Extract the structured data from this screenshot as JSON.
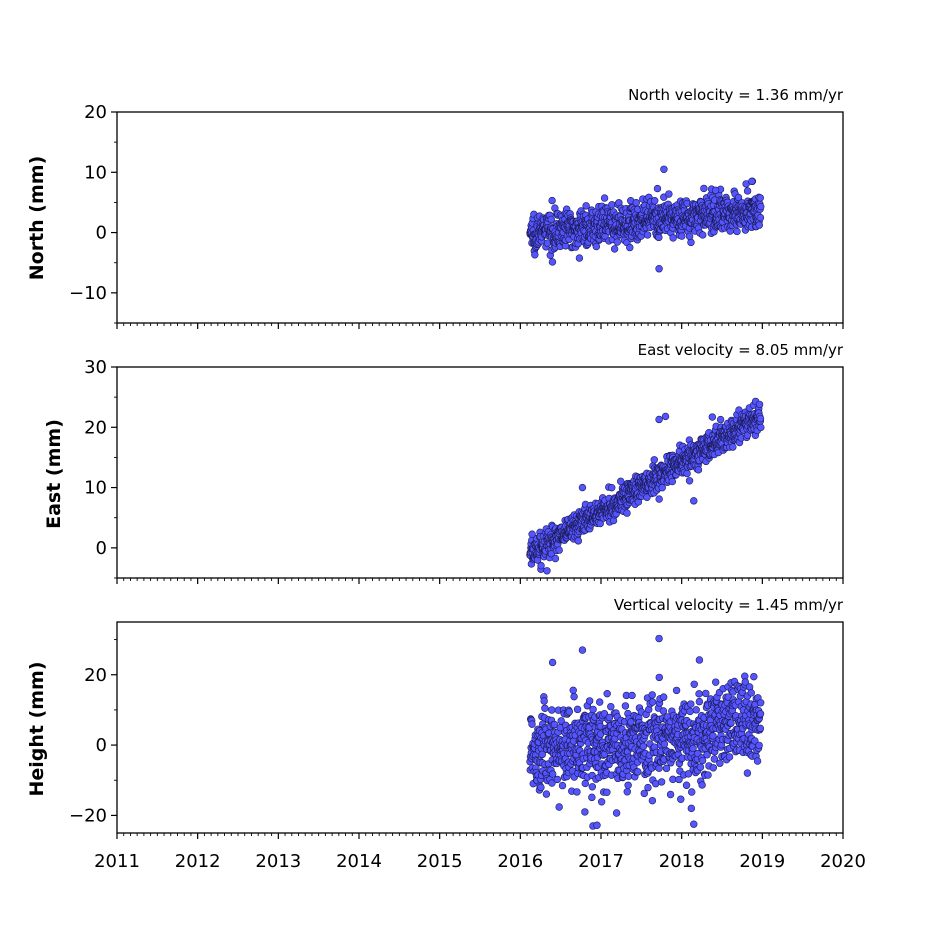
{
  "chart_data": [
    {
      "type": "scatter",
      "title": "North velocity = 1.36 mm/yr",
      "ylabel": "North (mm)",
      "xlim": [
        2011,
        2020
      ],
      "ylim": [
        -15,
        20
      ],
      "yticks": [
        -10,
        0,
        10,
        20
      ],
      "ytick_labels": [
        "−10",
        "0",
        "10",
        "20"
      ],
      "xticks": [
        2011,
        2012,
        2013,
        2014,
        2015,
        2016,
        2017,
        2018,
        2019,
        2020
      ],
      "show_xtick_labels": false,
      "grid": false,
      "marker_color": "#5555ff",
      "series": [
        {
          "velocity_mm_per_yr": 1.36,
          "start": 2016.12,
          "end": 2018.98,
          "offset_at_start": 0.0,
          "noise_std_mm": 1.5,
          "outliers": [
            [
              2017.72,
              -6.0
            ],
            [
              2017.78,
              10.5
            ],
            [
              2017.7,
              7.3
            ],
            [
              2018.42,
              7.0
            ],
            [
              2018.87,
              8.5
            ]
          ]
        }
      ]
    },
    {
      "type": "scatter",
      "title": "East velocity = 8.05 mm/yr",
      "ylabel": "East (mm)",
      "xlim": [
        2011,
        2020
      ],
      "ylim": [
        -5,
        30
      ],
      "yticks": [
        0,
        10,
        20,
        30
      ],
      "ytick_labels": [
        "0",
        "10",
        "20",
        "30"
      ],
      "xticks": [
        2011,
        2012,
        2013,
        2014,
        2015,
        2016,
        2017,
        2018,
        2019,
        2020
      ],
      "show_xtick_labels": false,
      "grid": false,
      "marker_color": "#5555ff",
      "series": [
        {
          "velocity_mm_per_yr": 8.05,
          "start": 2016.12,
          "end": 2018.98,
          "offset_at_start": -1.0,
          "noise_std_mm": 1.2,
          "outliers": [
            [
              2016.33,
              -3.8
            ],
            [
              2016.77,
              10.0
            ],
            [
              2017.72,
              21.3
            ],
            [
              2017.8,
              21.8
            ],
            [
              2018.15,
              7.8
            ],
            [
              2018.38,
              21.7
            ]
          ]
        }
      ]
    },
    {
      "type": "scatter",
      "title": "Vertical velocity = 1.45 mm/yr",
      "ylabel": "Height (mm)",
      "xlim": [
        2011,
        2020
      ],
      "ylim": [
        -25,
        35
      ],
      "yticks": [
        -20,
        0,
        20
      ],
      "ytick_labels": [
        "−20",
        "0",
        "20"
      ],
      "xticks": [
        2011,
        2012,
        2013,
        2014,
        2015,
        2016,
        2017,
        2018,
        2019,
        2020
      ],
      "xtick_labels": [
        "2011",
        "2012",
        "2013",
        "2014",
        "2015",
        "2016",
        "2017",
        "2018",
        "2019",
        "2020"
      ],
      "show_xtick_labels": true,
      "grid": false,
      "marker_color": "#5555ff",
      "series": [
        {
          "velocity_mm_per_yr": 1.45,
          "start": 2016.12,
          "end": 2018.98,
          "offset_at_start": -1.0,
          "noise_std_mm": 6.0,
          "outliers": [
            [
              2016.4,
              23.5
            ],
            [
              2016.77,
              27.0
            ],
            [
              2017.72,
              30.3
            ],
            [
              2018.22,
              24.2
            ],
            [
              2016.9,
              -23.0
            ],
            [
              2016.95,
              -22.8
            ],
            [
              2018.15,
              -22.5
            ],
            [
              2018.12,
              -18.0
            ],
            [
              2016.8,
              -19.0
            ]
          ]
        }
      ]
    }
  ]
}
